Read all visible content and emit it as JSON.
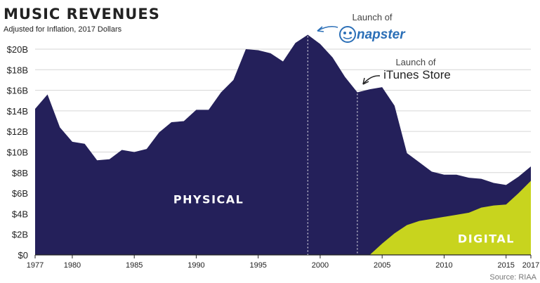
{
  "chart_data": {
    "type": "area",
    "title": "MUSIC REVENUES",
    "subtitle": "Adjusted for Inflation, 2017 Dollars",
    "source": "Source: RIAA",
    "x": [
      1977,
      1978,
      1979,
      1980,
      1981,
      1982,
      1983,
      1984,
      1985,
      1986,
      1987,
      1988,
      1989,
      1990,
      1991,
      1992,
      1993,
      1994,
      1995,
      1996,
      1997,
      1998,
      1999,
      2000,
      2001,
      2002,
      2003,
      2004,
      2005,
      2006,
      2007,
      2008,
      2009,
      2010,
      2011,
      2012,
      2013,
      2014,
      2015,
      2016,
      2017
    ],
    "series": [
      {
        "name": "PHYSICAL",
        "color": "#24205a",
        "values": [
          14.2,
          15.6,
          12.4,
          11.0,
          10.8,
          9.2,
          9.3,
          10.2,
          10.0,
          10.3,
          11.9,
          12.9,
          13.0,
          14.1,
          14.1,
          15.8,
          17.0,
          20.0,
          19.9,
          19.6,
          18.8,
          20.6,
          21.4,
          20.5,
          19.2,
          17.3,
          15.8,
          16.1,
          15.2,
          12.4,
          7.0,
          5.7,
          4.6,
          4.1,
          3.9,
          3.4,
          2.8,
          2.2,
          1.9,
          1.6,
          1.4
        ]
      },
      {
        "name": "DIGITAL",
        "color": "#c8d41e",
        "values": [
          0,
          0,
          0,
          0,
          0,
          0,
          0,
          0,
          0,
          0,
          0,
          0,
          0,
          0,
          0,
          0,
          0,
          0,
          0,
          0,
          0,
          0,
          0,
          0,
          0,
          0,
          0,
          0,
          1.1,
          2.1,
          2.9,
          3.3,
          3.5,
          3.7,
          3.9,
          4.1,
          4.6,
          4.8,
          4.9,
          6.0,
          7.2
        ]
      }
    ],
    "totals": [
      14.2,
      15.6,
      12.4,
      11.0,
      10.8,
      9.2,
      9.3,
      10.2,
      10.0,
      10.3,
      11.9,
      12.9,
      13.0,
      14.1,
      14.1,
      15.8,
      17.0,
      20.0,
      19.9,
      19.6,
      18.8,
      20.6,
      21.4,
      20.5,
      19.2,
      17.3,
      15.8,
      16.1,
      16.3,
      14.5,
      9.9,
      9.0,
      8.1,
      7.8,
      7.8,
      7.5,
      7.4,
      7.0,
      6.8,
      7.6,
      8.6
    ],
    "ylim": [
      0,
      21.5
    ],
    "xlim": [
      1977,
      2017
    ],
    "yticks": [
      0,
      2,
      4,
      6,
      8,
      10,
      12,
      14,
      16,
      18,
      20
    ],
    "ytick_labels": [
      "$0",
      "$2B",
      "$4B",
      "$6B",
      "$8B",
      "$10B",
      "$12B",
      "$14B",
      "$16B",
      "$18B",
      "$20B"
    ],
    "xticks": [
      1977,
      1980,
      1985,
      1990,
      1995,
      2000,
      2005,
      2010,
      2015,
      2017
    ],
    "xtick_labels": [
      "1977",
      "1980",
      "1985",
      "1990",
      "1995",
      "2000",
      "2005",
      "2010",
      "2015",
      "2017"
    ],
    "grid": true,
    "annotations": [
      {
        "id": "napster",
        "year": 1999,
        "text": "Launch of",
        "brand": "napster"
      },
      {
        "id": "itunes",
        "year": 2003,
        "text": "Launch of",
        "brand": "iTunes Store"
      }
    ]
  }
}
